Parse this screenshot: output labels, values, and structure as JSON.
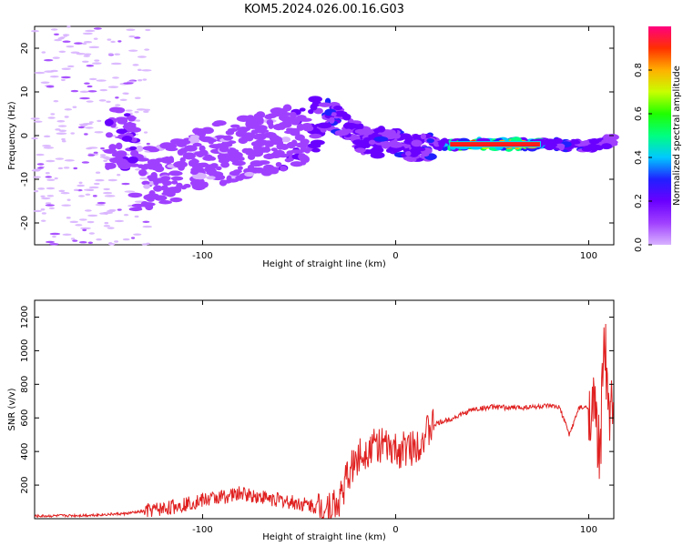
{
  "title": "KOM5.2024.026.00.16.G03",
  "chart_data": [
    {
      "type": "heatmap",
      "xlabel": "Height of straight line (km)",
      "ylabel": "Frequency (Hz)",
      "xlim": [
        -187,
        113
      ],
      "ylim": [
        -25,
        25
      ],
      "xticks": [
        -100,
        0,
        100
      ],
      "yticks": [
        -20,
        -10,
        0,
        10,
        20
      ],
      "grid": false,
      "colorbar": {
        "label": "Normalized spectral amplitude",
        "range": [
          0.0,
          1.0
        ],
        "ticks": [
          0.0,
          0.2,
          0.4,
          0.6,
          0.8
        ],
        "colors": [
          "#d8b2ff",
          "#a040ff",
          "#6a00ff",
          "#2020ff",
          "#00c8ff",
          "#00ff80",
          "#20ff00",
          "#c8ff00",
          "#ffb000",
          "#ff3000",
          "#ff0080"
        ]
      },
      "trace": [
        {
          "x": -135,
          "y": -10,
          "a": 0.25
        },
        {
          "x": -120,
          "y": -9,
          "a": 0.25
        },
        {
          "x": -100,
          "y": -5,
          "a": 0.2
        },
        {
          "x": -80,
          "y": -3,
          "a": 0.22
        },
        {
          "x": -60,
          "y": -1,
          "a": 0.25
        },
        {
          "x": -45,
          "y": 1,
          "a": 0.3
        },
        {
          "x": -35,
          "y": 5,
          "a": 0.55
        },
        {
          "x": -25,
          "y": 2,
          "a": 0.4
        },
        {
          "x": -15,
          "y": -2,
          "a": 0.45
        },
        {
          "x": 0,
          "y": -1,
          "a": 0.45
        },
        {
          "x": 10,
          "y": -3,
          "a": 0.35
        },
        {
          "x": 20,
          "y": -2,
          "a": 0.5
        },
        {
          "x": 30,
          "y": -2,
          "a": 0.95
        },
        {
          "x": 70,
          "y": -2,
          "a": 0.95
        },
        {
          "x": 80,
          "y": -2,
          "a": 0.55
        },
        {
          "x": 100,
          "y": -2.5,
          "a": 0.45
        },
        {
          "x": 113,
          "y": -1,
          "a": 0.3
        }
      ]
    },
    {
      "type": "line",
      "xlabel": "Height of straight line (km)",
      "ylabel": "SNR (v/v)",
      "xlim": [
        -187,
        113
      ],
      "ylim": [
        0,
        1300
      ],
      "xticks": [
        -100,
        0,
        100
      ],
      "yticks": [
        200,
        400,
        600,
        800,
        1000,
        1200
      ],
      "grid": false,
      "series": [
        {
          "color": "#e02020",
          "x": [
            -187,
            -160,
            -140,
            -120,
            -100,
            -80,
            -60,
            -40,
            -30,
            -25,
            -20,
            -15,
            -10,
            -5,
            0,
            10,
            20,
            30,
            40,
            50,
            60,
            70,
            80,
            85,
            90,
            95,
            100,
            103,
            106,
            108,
            110,
            113
          ],
          "y": [
            15,
            20,
            30,
            60,
            110,
            150,
            110,
            70,
            80,
            250,
            360,
            410,
            450,
            420,
            400,
            430,
            560,
            600,
            650,
            665,
            660,
            665,
            670,
            660,
            500,
            660,
            660,
            650,
            350,
            1200,
            600,
            700
          ]
        }
      ]
    }
  ]
}
